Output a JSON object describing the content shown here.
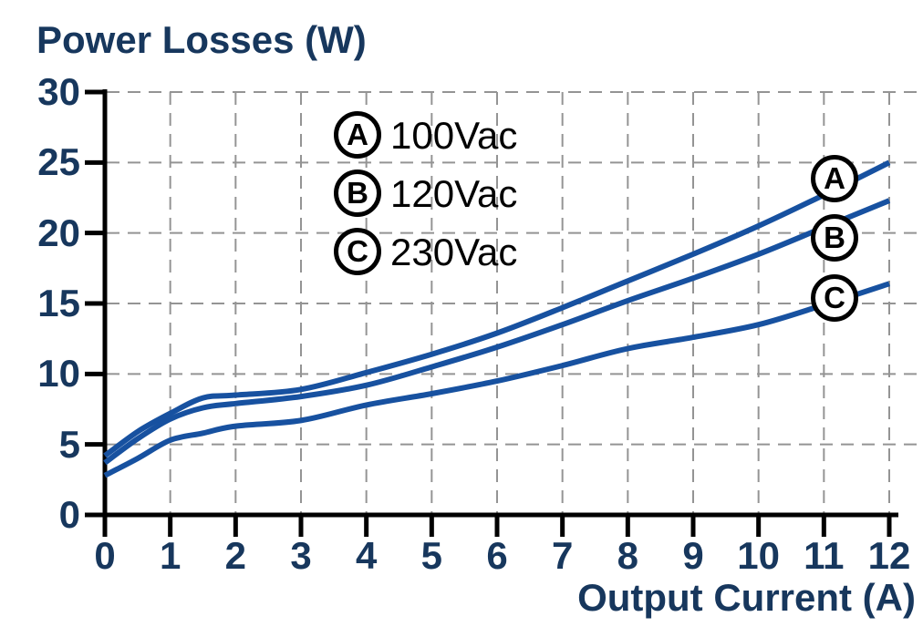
{
  "title": "Power Losses (W)",
  "x_axis_title": "Output Current (A)",
  "colors": {
    "curve_blue": "#1751A0",
    "navy_text": "#17375D",
    "grid_gray": "#949494",
    "axis_black": "#000000",
    "legend_black": "#000000",
    "background": "#FFFFFF"
  },
  "legend": [
    {
      "marker": "A",
      "label": "100Vac"
    },
    {
      "marker": "B",
      "label": "120Vac"
    },
    {
      "marker": "C",
      "label": "230Vac"
    }
  ],
  "chart_data": {
    "type": "line",
    "title": "Power Losses (W)",
    "xlabel": "Output Current (A)",
    "ylabel": "Power Losses (W)",
    "xlim": [
      0,
      12
    ],
    "ylim": [
      0,
      30
    ],
    "x_ticks": [
      0,
      1,
      2,
      3,
      4,
      5,
      6,
      7,
      8,
      9,
      10,
      11,
      12
    ],
    "y_ticks": [
      0,
      5,
      10,
      15,
      20,
      25,
      30
    ],
    "grid": true,
    "grid_style": "dashed",
    "legend_position": "inside upper-left",
    "x": [
      0,
      0.5,
      1,
      1.5,
      2,
      3,
      4,
      5,
      6,
      7,
      8,
      9,
      10,
      11,
      12
    ],
    "series": [
      {
        "badge": "A",
        "name": "100Vac",
        "values": [
          4.2,
          5.9,
          7.2,
          8.3,
          8.5,
          8.9,
          10.1,
          11.4,
          12.9,
          14.7,
          16.6,
          18.5,
          20.5,
          22.7,
          25.0
        ]
      },
      {
        "badge": "B",
        "name": "120Vac",
        "values": [
          3.7,
          5.4,
          6.8,
          7.6,
          7.9,
          8.4,
          9.2,
          10.5,
          11.9,
          13.5,
          15.2,
          16.8,
          18.5,
          20.4,
          22.3
        ]
      },
      {
        "badge": "C",
        "name": "230Vac",
        "values": [
          2.8,
          4.0,
          5.3,
          5.8,
          6.3,
          6.7,
          7.8,
          8.6,
          9.5,
          10.6,
          11.8,
          12.6,
          13.5,
          14.9,
          16.4
        ]
      }
    ]
  }
}
